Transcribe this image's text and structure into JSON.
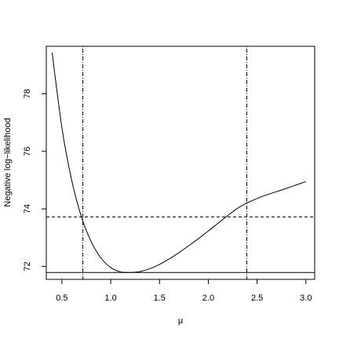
{
  "chart_data": {
    "type": "line",
    "title": "",
    "xlabel": "μ",
    "ylabel": "Negative log−likelihood",
    "xlim": [
      0.34,
      3.09
    ],
    "ylim": [
      71.55,
      79.65
    ],
    "xticks": [
      0.5,
      1.0,
      1.5,
      2.0,
      2.5,
      3.0
    ],
    "xtick_labels": [
      "0.5",
      "1.0",
      "1.5",
      "2.0",
      "2.5",
      "3.0"
    ],
    "yticks": [
      72,
      74,
      76,
      78
    ],
    "ytick_labels": [
      "72",
      "74",
      "76",
      "78"
    ],
    "grid": false,
    "series": [
      {
        "x": [
          0.4,
          0.5,
          0.6,
          0.7,
          0.8,
          0.9,
          1.0,
          1.1,
          1.2,
          1.25,
          1.3,
          1.4,
          1.5,
          1.6,
          1.7,
          1.8,
          1.9,
          2.0,
          2.1,
          2.2,
          2.3,
          2.4,
          2.5,
          2.6,
          2.7,
          2.8,
          2.9,
          3.0
        ],
        "y": [
          79.43,
          76.82,
          75.0,
          73.72,
          72.86,
          72.29,
          71.96,
          71.81,
          71.79,
          71.8,
          71.82,
          71.92,
          72.07,
          72.26,
          72.48,
          72.72,
          72.97,
          73.23,
          73.5,
          73.77,
          74.02,
          74.21,
          74.36,
          74.49,
          74.6,
          74.71,
          74.83,
          74.95
        ]
      }
    ],
    "reference_lines": {
      "minimum_nll": 71.79,
      "threshold_nll": 73.72,
      "interval_lower": 0.715,
      "interval_upper": 2.395
    }
  }
}
